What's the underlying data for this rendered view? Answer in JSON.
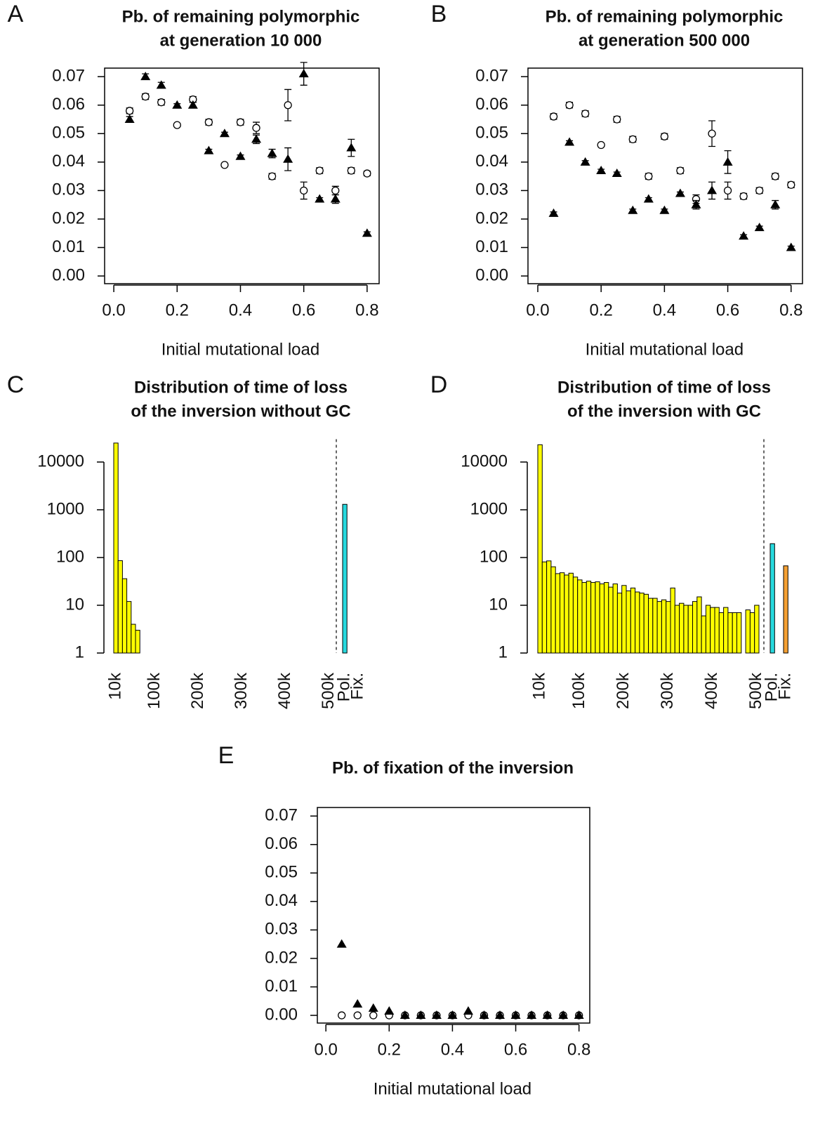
{
  "chart_data": [
    {
      "type": "scatter",
      "panel": "A",
      "title": [
        "Pb. of remaining polymorphic",
        "at generation 10 000"
      ],
      "xlabel": "Initial mutational load",
      "x": [
        0.05,
        0.1,
        0.15,
        0.2,
        0.25,
        0.3,
        0.35,
        0.4,
        0.45,
        0.5,
        0.55,
        0.6,
        0.65,
        0.7,
        0.75,
        0.8
      ],
      "series": [
        {
          "marker": "circle",
          "color": "#000000",
          "values": [
            0.058,
            0.063,
            0.061,
            0.053,
            0.062,
            0.054,
            0.039,
            0.054,
            0.052,
            0.035,
            0.06,
            0.03,
            0.037,
            0.03,
            0.037,
            0.036
          ],
          "errors": [
            0.001,
            0.001,
            0.001,
            0.0005,
            0.001,
            0.001,
            0.0005,
            0.001,
            0.002,
            0.001,
            0.0055,
            0.003,
            0.001,
            0.0015,
            0.001,
            0.0008
          ]
        },
        {
          "marker": "triangle",
          "color": "#000000",
          "values": [
            0.055,
            0.07,
            0.067,
            0.06,
            0.06,
            0.044,
            0.05,
            0.042,
            0.048,
            0.043,
            0.041,
            0.071,
            0.027,
            0.027,
            0.045,
            0.015
          ],
          "errors": [
            0.001,
            0.001,
            0.001,
            0.0005,
            0.001,
            0.0005,
            0.0005,
            0.0005,
            0.0015,
            0.0015,
            0.004,
            0.004,
            0.0005,
            0.0015,
            0.003,
            0.0005
          ]
        }
      ],
      "xlim": [
        -0.029,
        0.838
      ],
      "ylim": [
        -0.0027,
        0.073
      ],
      "xticks": [
        {
          "value": 0,
          "label": "0.0"
        },
        0.2,
        0.4,
        0.6,
        0.8
      ],
      "yticks": [
        {
          "value": 0,
          "label": "0.00"
        },
        0.01,
        0.02,
        0.03,
        0.04,
        0.05,
        0.06,
        0.07
      ]
    },
    {
      "type": "scatter",
      "panel": "B",
      "title": [
        "Pb. of remaining polymorphic",
        "at generation 500 000"
      ],
      "xlabel": "Initial mutational load",
      "x": [
        0.05,
        0.1,
        0.15,
        0.2,
        0.25,
        0.3,
        0.35,
        0.4,
        0.45,
        0.5,
        0.55,
        0.6,
        0.65,
        0.7,
        0.75,
        0.8
      ],
      "series": [
        {
          "marker": "circle",
          "color": "#000000",
          "values": [
            0.056,
            0.06,
            0.057,
            0.046,
            0.055,
            0.048,
            0.035,
            0.049,
            0.037,
            0.027,
            0.05,
            0.03,
            0.028,
            0.03,
            0.035,
            0.032
          ],
          "errors": [
            0.001,
            0.001,
            0.001,
            0.0005,
            0.001,
            0.001,
            0.001,
            0.001,
            0.001,
            0.0015,
            0.0045,
            0.003,
            0.001,
            0.001,
            0.001,
            0.001
          ]
        },
        {
          "marker": "triangle",
          "color": "#000000",
          "values": [
            0.022,
            0.047,
            0.04,
            0.037,
            0.036,
            0.023,
            0.027,
            0.023,
            0.029,
            0.025,
            0.03,
            0.04,
            0.014,
            0.017,
            0.025,
            0.01
          ],
          "errors": [
            0.0005,
            0.0005,
            0.0005,
            0.0005,
            0.0005,
            0.0005,
            0.0005,
            0.0005,
            0.0005,
            0.0015,
            0.003,
            0.004,
            0.0005,
            0.0005,
            0.0015,
            0.0005
          ]
        }
      ],
      "xlim": [
        -0.031,
        0.836
      ],
      "ylim": [
        -0.0027,
        0.073
      ],
      "xticks": [
        {
          "value": 0,
          "label": "0.0"
        },
        0.2,
        0.4,
        0.6,
        0.8
      ],
      "yticks": [
        {
          "value": 0,
          "label": "0.00"
        },
        0.01,
        0.02,
        0.03,
        0.04,
        0.05,
        0.06,
        0.07
      ]
    },
    {
      "type": "bar",
      "panel": "C",
      "title": [
        "Distribution of time of loss",
        "of the inversion without GC"
      ],
      "log_scale": true,
      "categories": [
        "10k",
        null,
        null,
        null,
        null,
        null,
        null,
        null,
        null,
        "100k",
        null,
        null,
        null,
        null,
        null,
        null,
        null,
        null,
        null,
        "200k",
        null,
        null,
        null,
        null,
        null,
        null,
        null,
        null,
        null,
        "300k",
        null,
        null,
        null,
        null,
        null,
        null,
        null,
        null,
        null,
        "400k",
        null,
        null,
        null,
        null,
        null,
        null,
        null,
        null,
        null,
        "500k",
        "Pol.",
        "Fix."
      ],
      "values": [
        25000,
        86,
        36,
        12,
        4,
        3,
        null,
        null,
        null,
        null,
        null,
        null,
        null,
        null,
        null,
        null,
        null,
        null,
        null,
        null,
        null,
        null,
        null,
        null,
        null,
        null,
        null,
        null,
        null,
        null,
        null,
        null,
        null,
        null,
        null,
        null,
        null,
        null,
        null,
        null,
        null,
        null,
        null,
        null,
        null,
        null,
        null,
        null,
        null,
        null,
        1300,
        null
      ],
      "colors": [
        "#ffff00",
        "#ffff00",
        "#ffff00",
        "#ffff00",
        "#ffff00",
        "#ffff00",
        "#ffff00",
        "#ffff00",
        "#ffff00",
        "#ffff00",
        "#ffff00",
        "#ffff00",
        "#ffff00",
        "#ffff00",
        "#ffff00",
        "#ffff00",
        "#ffff00",
        "#ffff00",
        "#ffff00",
        "#ffff00",
        "#ffff00",
        "#ffff00",
        "#ffff00",
        "#ffff00",
        "#ffff00",
        "#ffff00",
        "#ffff00",
        "#ffff00",
        "#ffff00",
        "#ffff00",
        "#ffff00",
        "#ffff00",
        "#ffff00",
        "#ffff00",
        "#ffff00",
        "#ffff00",
        "#ffff00",
        "#ffff00",
        "#ffff00",
        "#ffff00",
        "#ffff00",
        "#ffff00",
        "#ffff00",
        "#ffff00",
        "#ffff00",
        "#ffff00",
        "#ffff00",
        "#ffff00",
        "#ffff00",
        "#ffff00",
        "#27d9de",
        "#f5a033"
      ],
      "ylim": [
        1,
        30000
      ],
      "yticks": [
        1,
        10,
        100,
        1000,
        10000
      ]
    },
    {
      "type": "bar",
      "panel": "D",
      "title": [
        "Distribution of time of loss",
        "of the inversion with GC"
      ],
      "log_scale": true,
      "categories": [
        "10k",
        null,
        null,
        null,
        null,
        null,
        null,
        null,
        null,
        "100k",
        null,
        null,
        null,
        null,
        null,
        null,
        null,
        null,
        null,
        "200k",
        null,
        null,
        null,
        null,
        null,
        null,
        null,
        null,
        null,
        "300k",
        null,
        null,
        null,
        null,
        null,
        null,
        null,
        null,
        null,
        "400k",
        null,
        null,
        null,
        null,
        null,
        null,
        null,
        null,
        null,
        "500k",
        "Pol.",
        "Fix."
      ],
      "values": [
        23000,
        81,
        85,
        64,
        46,
        48,
        43,
        47,
        39,
        34,
        30,
        32,
        30,
        31,
        28,
        30,
        24,
        28,
        18,
        26,
        20,
        23,
        19,
        18,
        17,
        14,
        14,
        12,
        13,
        12,
        23,
        10,
        11,
        10,
        10,
        12,
        15,
        6,
        10,
        9,
        9,
        7,
        9,
        7,
        7,
        7,
        null,
        8,
        7,
        10,
        195,
        67
      ],
      "colors": [
        "#ffff00",
        "#ffff00",
        "#ffff00",
        "#ffff00",
        "#ffff00",
        "#ffff00",
        "#ffff00",
        "#ffff00",
        "#ffff00",
        "#ffff00",
        "#ffff00",
        "#ffff00",
        "#ffff00",
        "#ffff00",
        "#ffff00",
        "#ffff00",
        "#ffff00",
        "#ffff00",
        "#ffff00",
        "#ffff00",
        "#ffff00",
        "#ffff00",
        "#ffff00",
        "#ffff00",
        "#ffff00",
        "#ffff00",
        "#ffff00",
        "#ffff00",
        "#ffff00",
        "#ffff00",
        "#ffff00",
        "#ffff00",
        "#ffff00",
        "#ffff00",
        "#ffff00",
        "#ffff00",
        "#ffff00",
        "#ffff00",
        "#ffff00",
        "#ffff00",
        "#ffff00",
        "#ffff00",
        "#ffff00",
        "#ffff00",
        "#ffff00",
        "#ffff00",
        "#ffff00",
        "#ffff00",
        "#ffff00",
        "#ffff00",
        "#27d9de",
        "#f5a033"
      ],
      "ylim": [
        1,
        30000
      ],
      "yticks": [
        1,
        10,
        100,
        1000,
        10000
      ]
    },
    {
      "type": "scatter",
      "panel": "E",
      "title": [
        "Pb. of fixation of the inversion"
      ],
      "xlabel": "Initial mutational load",
      "x": [
        0.05,
        0.1,
        0.15,
        0.2,
        0.25,
        0.3,
        0.35,
        0.4,
        0.45,
        0.5,
        0.55,
        0.6,
        0.65,
        0.7,
        0.75,
        0.8
      ],
      "series": [
        {
          "marker": "circle",
          "color": "#000000",
          "values": [
            0,
            0,
            0,
            0,
            0,
            0,
            0,
            0,
            0,
            0,
            0,
            0,
            0,
            0,
            0,
            0
          ]
        },
        {
          "marker": "triangle",
          "color": "#000000",
          "values": [
            0.025,
            0.004,
            0.0025,
            0.0015,
            0,
            0,
            0,
            0,
            0.0015,
            0,
            0,
            0,
            0,
            0,
            0,
            0
          ]
        }
      ],
      "xlim": [
        -0.027,
        0.834
      ],
      "ylim": [
        -0.0027,
        0.073
      ],
      "xticks": [
        {
          "value": 0,
          "label": "0.0"
        },
        0.2,
        0.4,
        0.6,
        0.8
      ],
      "yticks": [
        {
          "value": 0,
          "label": "0.00"
        },
        0.01,
        0.02,
        0.03,
        0.04,
        0.05,
        0.06,
        0.07
      ]
    }
  ]
}
